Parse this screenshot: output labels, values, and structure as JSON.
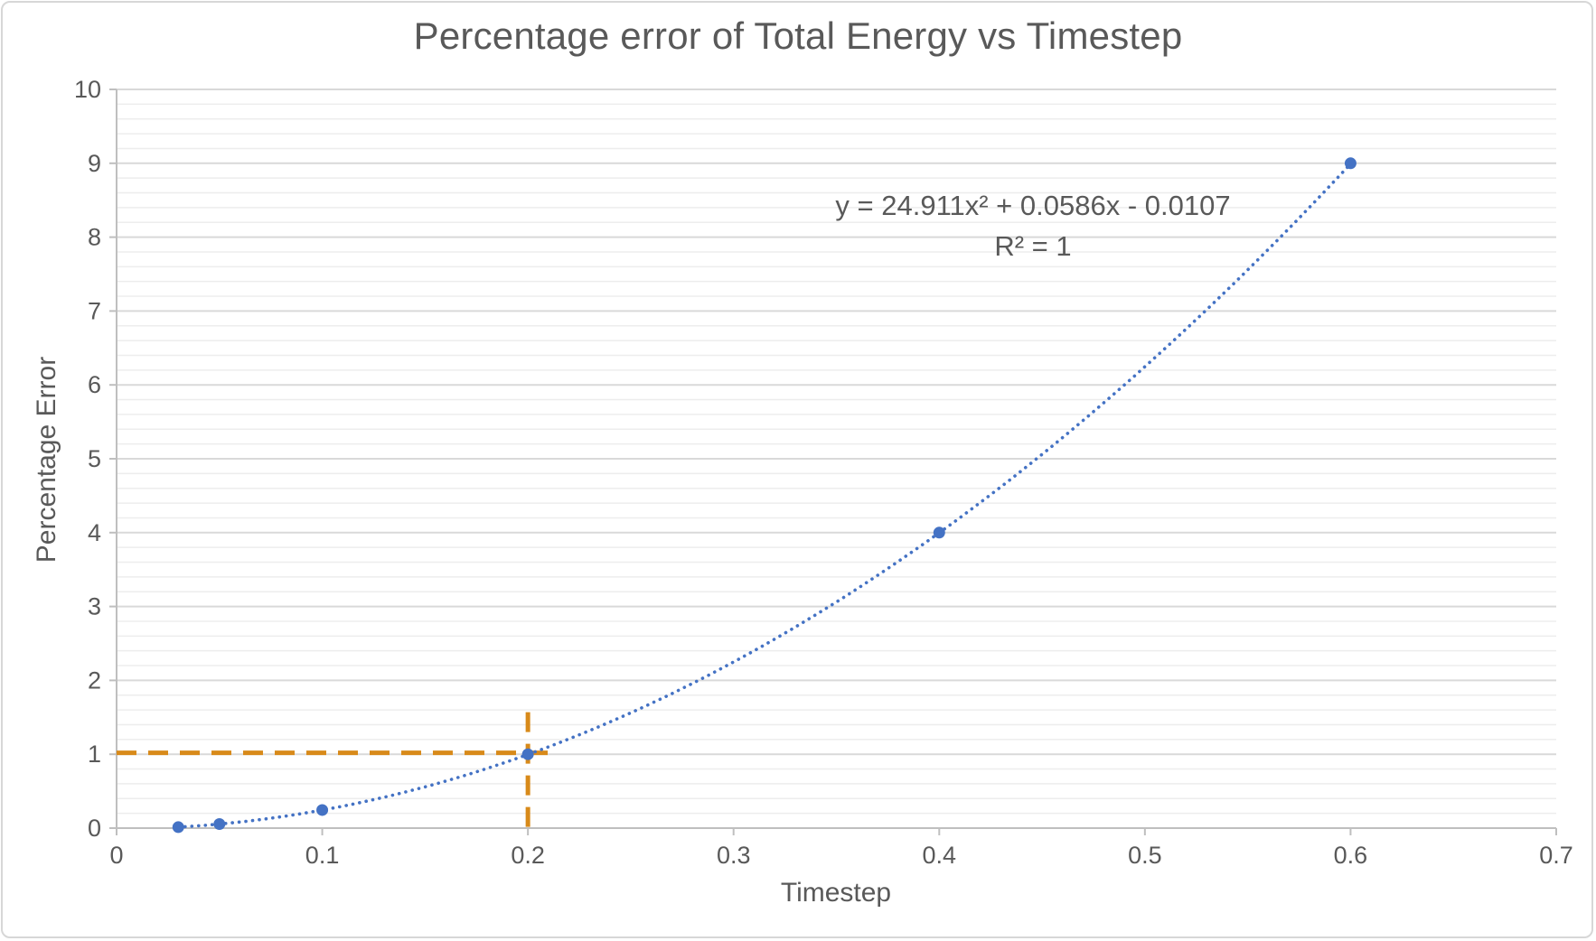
{
  "chart_data": {
    "type": "scatter",
    "title": "Percentage error of Total Energy vs Timestep",
    "xlabel": "Timestep",
    "ylabel": "Percentage Error",
    "series": [
      {
        "name": "Percentage Error",
        "marker": "circle",
        "points": [
          [
            0.03,
            0.013
          ],
          [
            0.05,
            0.055
          ],
          [
            0.1,
            0.245
          ],
          [
            0.2,
            1.0
          ],
          [
            0.4,
            4.0
          ],
          [
            0.6,
            9.0
          ]
        ]
      }
    ],
    "trendline": {
      "type": "polynomial",
      "order": 2,
      "coefficients": {
        "a": 24.911,
        "b": 0.0586,
        "c": -0.0107
      },
      "style": "dotted",
      "x_range": [
        0.03,
        0.6
      ],
      "equation_label": "y = 24.911x² + 0.0586x - 0.0107",
      "r_squared_label": "R² = 1"
    },
    "annotations": {
      "horizontal_dashed_line": {
        "y": 1.02,
        "x_from": 0,
        "x_to": 0.21
      },
      "vertical_dashed_line": {
        "x": 0.2,
        "y_from": 0,
        "y_to": 1.57
      }
    },
    "axes": {
      "xlim": [
        0,
        0.7
      ],
      "xticks": [
        "0",
        "0.1",
        "0.2",
        "0.3",
        "0.4",
        "0.5",
        "0.6",
        "0.7"
      ],
      "xtick_values": [
        0,
        0.1,
        0.2,
        0.3,
        0.4,
        0.5,
        0.6,
        0.7
      ],
      "ylim": [
        0,
        10
      ],
      "yticks": [
        "0",
        "1",
        "2",
        "3",
        "4",
        "5",
        "6",
        "7",
        "8",
        "9",
        "10"
      ],
      "ytick_values": [
        0,
        1,
        2,
        3,
        4,
        5,
        6,
        7,
        8,
        9,
        10
      ],
      "y_minor_step": 0.2,
      "grid": "horizontal major and minor gridlines, no vertical gridlines",
      "legend": "none"
    }
  },
  "colors": {
    "series_blue": "#4472C4",
    "trendline_blue": "#4472C4",
    "dashed_orange": "#D88A1A",
    "text_gray": "#595959",
    "axis_line_gray": "#BFBFBF",
    "major_grid_gray": "#D9D9D9",
    "minor_grid_gray": "#EDEDED",
    "frame_border_gray": "#D7D7D7",
    "background": "#FFFFFF"
  }
}
